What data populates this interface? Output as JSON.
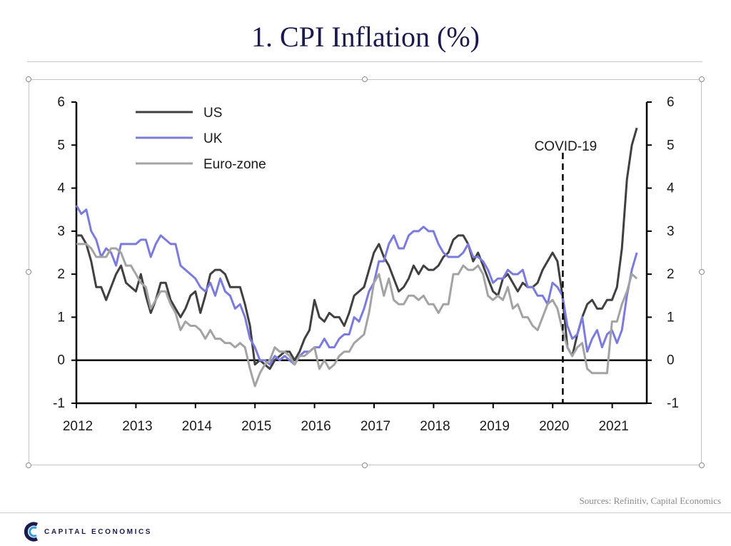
{
  "page": {
    "title": "1. CPI Inflation (%)",
    "sources": "Sources: Refinitiv, Capital Economics",
    "brand": "CAPITAL ECONOMICS",
    "brand_logo_icon": "capital-economics-logo-icon"
  },
  "chart_data": {
    "type": "line",
    "title": "1. CPI Inflation (%)",
    "xlabel": "",
    "ylabel": "",
    "ylim": [
      -1,
      6
    ],
    "xlim": [
      2012.0,
      2021.58
    ],
    "y_ticks": [
      "-1",
      "0",
      "1",
      "2",
      "3",
      "4",
      "5",
      "6"
    ],
    "x_ticks": [
      "2012",
      "2013",
      "2014",
      "2015",
      "2016",
      "2017",
      "2018",
      "2019",
      "2020",
      "2021"
    ],
    "secondary_y_axis": true,
    "zero_line": true,
    "grid": false,
    "legend_position": "top-left",
    "annotations": [
      {
        "label": "COVID-19",
        "x": 2020.17,
        "style": "dashed-vertical-line"
      }
    ],
    "x_start": 2012.0,
    "x_step_years": 0.0833,
    "series": [
      {
        "name": "US",
        "color": "#404040",
        "values": [
          2.9,
          2.9,
          2.7,
          2.3,
          1.7,
          1.7,
          1.4,
          1.7,
          2.0,
          2.2,
          1.8,
          1.7,
          1.6,
          2.0,
          1.5,
          1.1,
          1.4,
          1.8,
          1.8,
          1.4,
          1.2,
          1.0,
          1.2,
          1.5,
          1.6,
          1.1,
          1.5,
          2.0,
          2.1,
          2.1,
          2.0,
          1.7,
          1.7,
          1.7,
          1.3,
          0.8,
          -0.1,
          0.0,
          -0.1,
          -0.2,
          0.0,
          0.1,
          0.2,
          0.2,
          0.0,
          0.2,
          0.5,
          0.7,
          1.4,
          1.0,
          0.9,
          1.1,
          1.0,
          1.0,
          0.8,
          1.1,
          1.5,
          1.6,
          1.7,
          2.1,
          2.5,
          2.7,
          2.4,
          2.2,
          1.9,
          1.6,
          1.7,
          1.9,
          2.2,
          2.0,
          2.2,
          2.1,
          2.1,
          2.2,
          2.4,
          2.5,
          2.8,
          2.9,
          2.9,
          2.7,
          2.3,
          2.5,
          2.2,
          1.9,
          1.6,
          1.5,
          1.9,
          2.0,
          1.8,
          1.6,
          1.8,
          1.7,
          1.7,
          1.8,
          2.1,
          2.3,
          2.5,
          2.3,
          1.5,
          0.3,
          0.1,
          0.6,
          1.0,
          1.3,
          1.4,
          1.2,
          1.2,
          1.4,
          1.4,
          1.7,
          2.6,
          4.2,
          5.0,
          5.4
        ]
      },
      {
        "name": "UK",
        "color": "#7b7bde",
        "values": [
          3.6,
          3.4,
          3.5,
          3.0,
          2.8,
          2.4,
          2.6,
          2.5,
          2.2,
          2.7,
          2.7,
          2.7,
          2.7,
          2.8,
          2.8,
          2.4,
          2.7,
          2.9,
          2.8,
          2.7,
          2.7,
          2.2,
          2.1,
          2.0,
          1.9,
          1.7,
          1.6,
          1.8,
          1.5,
          1.9,
          1.6,
          1.5,
          1.2,
          1.3,
          1.0,
          0.5,
          0.3,
          0.0,
          0.0,
          -0.1,
          0.1,
          0.0,
          0.1,
          0.0,
          -0.1,
          0.1,
          0.2,
          0.2,
          0.3,
          0.3,
          0.5,
          0.3,
          0.3,
          0.5,
          0.6,
          0.6,
          1.0,
          0.9,
          1.2,
          1.6,
          1.8,
          2.3,
          2.3,
          2.7,
          2.9,
          2.6,
          2.6,
          2.9,
          3.0,
          3.0,
          3.1,
          3.0,
          3.0,
          2.7,
          2.5,
          2.4,
          2.4,
          2.4,
          2.5,
          2.7,
          2.4,
          2.4,
          2.3,
          2.1,
          1.8,
          1.9,
          1.9,
          2.1,
          2.0,
          2.0,
          2.1,
          1.7,
          1.7,
          1.5,
          1.5,
          1.3,
          1.8,
          1.7,
          1.5,
          0.8,
          0.5,
          0.6,
          1.0,
          0.2,
          0.5,
          0.7,
          0.3,
          0.6,
          0.7,
          0.4,
          0.7,
          1.5,
          2.1,
          2.5
        ]
      },
      {
        "name": "Euro-zone",
        "color": "#a3a3a3",
        "values": [
          2.7,
          2.7,
          2.7,
          2.6,
          2.4,
          2.4,
          2.4,
          2.6,
          2.6,
          2.5,
          2.2,
          2.2,
          2.0,
          1.8,
          1.7,
          1.2,
          1.4,
          1.6,
          1.6,
          1.3,
          1.1,
          0.7,
          0.9,
          0.8,
          0.8,
          0.7,
          0.5,
          0.7,
          0.5,
          0.5,
          0.4,
          0.4,
          0.3,
          0.4,
          0.3,
          -0.2,
          -0.6,
          -0.3,
          -0.1,
          0.0,
          0.3,
          0.2,
          0.2,
          0.1,
          -0.1,
          0.1,
          0.1,
          0.2,
          0.3,
          -0.2,
          0.0,
          -0.2,
          -0.1,
          0.1,
          0.2,
          0.2,
          0.4,
          0.5,
          0.6,
          1.1,
          1.8,
          2.0,
          1.5,
          1.9,
          1.4,
          1.3,
          1.3,
          1.5,
          1.5,
          1.4,
          1.5,
          1.3,
          1.3,
          1.1,
          1.3,
          1.3,
          2.0,
          2.0,
          2.2,
          2.1,
          2.1,
          2.2,
          2.0,
          1.5,
          1.4,
          1.5,
          1.4,
          1.7,
          1.2,
          1.3,
          1.0,
          1.0,
          0.8,
          0.7,
          1.0,
          1.3,
          1.4,
          1.2,
          0.7,
          0.3,
          0.1,
          0.3,
          0.4,
          -0.2,
          -0.3,
          -0.3,
          -0.3,
          -0.3,
          0.9,
          0.9,
          1.3,
          1.6,
          2.0,
          1.9
        ]
      }
    ]
  }
}
